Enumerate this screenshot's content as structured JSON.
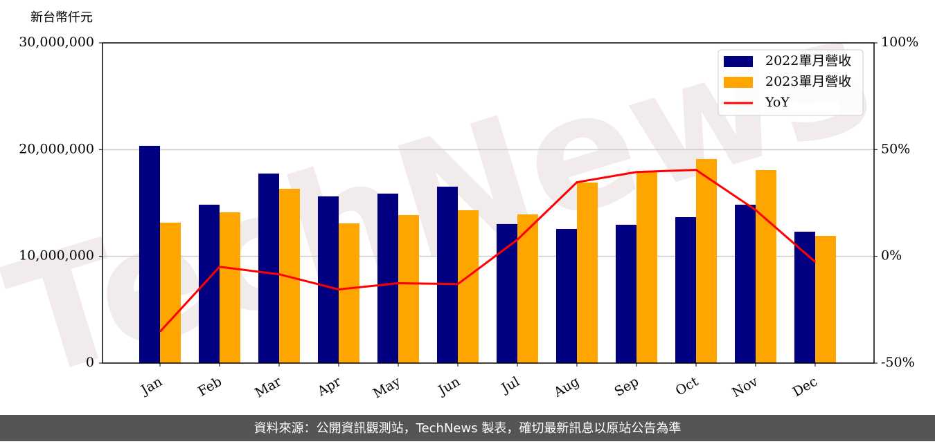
{
  "chart_data": {
    "type": "bar",
    "y_label": "新台幣仟元",
    "categories": [
      "Jan",
      "Feb",
      "Mar",
      "Apr",
      "May",
      "Jun",
      "Jul",
      "Aug",
      "Sep",
      "Oct",
      "Nov",
      "Dec"
    ],
    "series": [
      {
        "name": "2022單月營收",
        "color": "#000080",
        "values": [
          20350000,
          14840000,
          17760000,
          15620000,
          15880000,
          16530000,
          13030000,
          12570000,
          12960000,
          13670000,
          14840000,
          12310000
        ]
      },
      {
        "name": "2023單月營收",
        "color": "#ffa500",
        "values": [
          13160000,
          14130000,
          16330000,
          13090000,
          13870000,
          14320000,
          13930000,
          16920000,
          17950000,
          19120000,
          18080000,
          11920000
        ]
      },
      {
        "name": "YoY",
        "color": "#ff0000",
        "type": "line",
        "axis": "y2",
        "values": [
          -35.3,
          -4.9,
          -8.4,
          -15.5,
          -12.6,
          -13.0,
          7.8,
          34.7,
          39.5,
          40.5,
          21.7,
          -2.6
        ]
      }
    ],
    "ylim": [
      0,
      30000000
    ],
    "yticks": [
      0,
      {
        "value": 10000000,
        "label": "10,000,000"
      },
      {
        "value": 20000000,
        "label": "20,000,000"
      },
      {
        "value": 30000000,
        "label": "30,000,000"
      }
    ],
    "y2lim": [
      -50,
      100
    ],
    "y2ticks": [
      {
        "value": -50,
        "label": "-50%"
      },
      {
        "value": 0,
        "label": "0%"
      },
      {
        "value": 50,
        "label": "50%"
      },
      {
        "value": 100,
        "label": "100%"
      }
    ],
    "grid": true,
    "legend": "upper right",
    "watermark": "TechNews",
    "footer": "資料來源：公開資訊觀測站，TechNews 製表，確切最新訊息以原站公告為準"
  }
}
